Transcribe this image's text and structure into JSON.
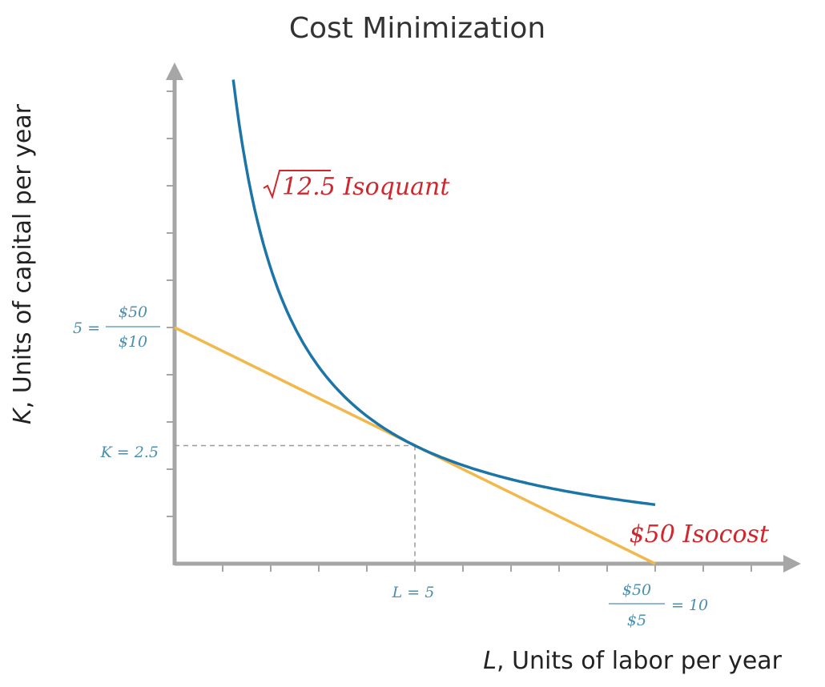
{
  "chart_data": {
    "type": "line",
    "title": "Cost Minimization",
    "xlabel": {
      "var": "L",
      "text": ", Units of labor per year"
    },
    "ylabel": {
      "var": "K",
      "text": ", Units of capital per year"
    },
    "xlim": [
      0,
      13
    ],
    "ylim": [
      0,
      10
    ],
    "series": [
      {
        "name": "√12.5 Isoquant",
        "label_root": "12.5",
        "label_text": " Isoquant",
        "color": "#1b75a8",
        "formula": "K = 12.5 / L",
        "x_range": [
          1.22,
          10
        ]
      },
      {
        "name": "$50 Isocost",
        "color": "#f2b84b",
        "formula": "K = 5 - 0.5 L",
        "x_range": [
          0,
          10
        ]
      }
    ],
    "optimum": {
      "L": 5,
      "K": 2.5
    },
    "annotations": {
      "l_opt": "L = 5",
      "k_opt": "K = 2.5",
      "y_int_prefix": "5 =",
      "y_int_num": "$50",
      "y_int_den": "$10",
      "x_int_num": "$50",
      "x_int_den": "$5",
      "x_int_suffix": "= 10"
    },
    "colors": {
      "axis": "#a6a6a6",
      "guide": "#999999",
      "annotation": "#4a8fb0",
      "label": "#d0262c"
    }
  }
}
